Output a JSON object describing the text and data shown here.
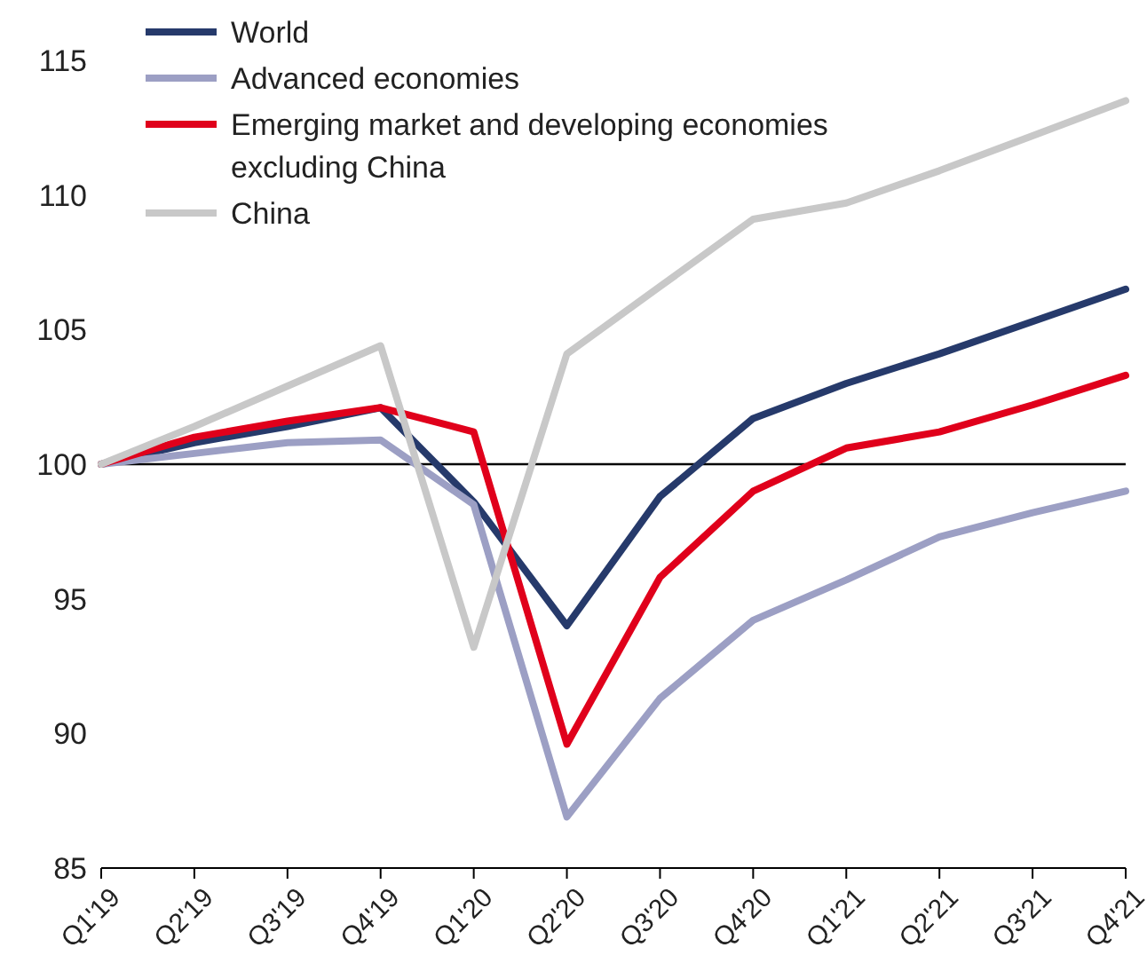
{
  "chart_data": {
    "type": "line",
    "categories": [
      "Q1'19",
      "Q2'19",
      "Q3'19",
      "Q4'19",
      "Q1'20",
      "Q2'20",
      "Q3'20",
      "Q4'20",
      "Q1'21",
      "Q2'21",
      "Q3'21",
      "Q4'21"
    ],
    "ylim": [
      85,
      115
    ],
    "yticks": [
      85,
      90,
      95,
      100,
      105,
      110,
      115
    ],
    "grid": false,
    "legend": "top left",
    "marker": "none",
    "line_style": "solid",
    "ref_lines": [
      {
        "axis": "y",
        "value": 100,
        "color": "#000000"
      }
    ],
    "series": [
      {
        "name": "World",
        "color": "#263a6b",
        "values": [
          100,
          100.8,
          101.4,
          102.1,
          98.6,
          94.0,
          98.8,
          101.7,
          103.0,
          104.1,
          105.3,
          106.5
        ]
      },
      {
        "name": "Advanced economies",
        "color": "#9c9fc4",
        "values": [
          100,
          100.4,
          100.8,
          100.9,
          98.5,
          86.9,
          91.3,
          94.2,
          95.7,
          97.3,
          98.2,
          99.0
        ]
      },
      {
        "name": "Emerging market and developing economies excluding China",
        "color": "#e0001b",
        "values": [
          100,
          101.0,
          101.6,
          102.1,
          101.2,
          89.6,
          95.8,
          99.0,
          100.6,
          101.2,
          102.2,
          103.3
        ]
      },
      {
        "name": "China",
        "color": "#c8c8c8",
        "values": [
          100,
          101.4,
          102.9,
          104.4,
          93.2,
          104.1,
          106.6,
          109.1,
          109.7,
          110.9,
          112.2,
          113.5
        ]
      }
    ]
  }
}
